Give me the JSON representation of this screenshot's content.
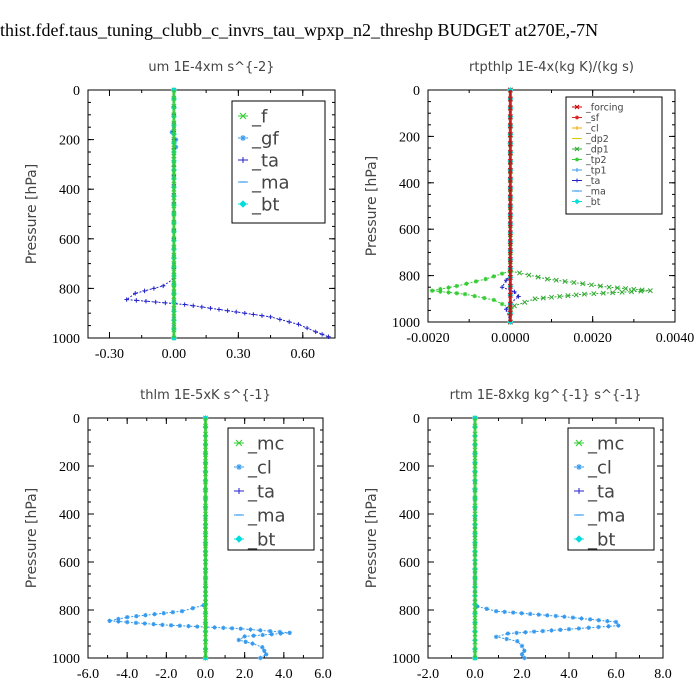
{
  "page": {
    "title": "thist.fdef.taus_tuning_clubb_c_invrs_tau_wpxp_n2_threshp  BUDGET at270E,-7N"
  },
  "chart_data": [
    {
      "type": "line",
      "title": "um   1E-4xm s^{-2}",
      "ylabel": "Pressure [hPa]",
      "xlim": [
        -0.4,
        0.75
      ],
      "ylim": [
        1000,
        0
      ],
      "xticks": [
        -0.3,
        0.0,
        0.3,
        0.6
      ],
      "xtick_labels": [
        "-0.30",
        "0.00",
        "0.30",
        "0.60"
      ],
      "yticks": [
        0,
        200,
        400,
        600,
        800,
        1000
      ],
      "ytick_labels": [
        "0",
        "200",
        "400",
        "600",
        "800",
        "1000"
      ],
      "legend": {
        "position": "top-right",
        "font": "large"
      },
      "series": [
        {
          "name": "_f",
          "color": "#33cc33",
          "marker": "x",
          "points": [
            [
              0,
              0
            ],
            [
              0,
              100
            ],
            [
              0,
              200
            ],
            [
              0,
              300
            ],
            [
              0,
              400
            ],
            [
              0,
              500
            ],
            [
              0,
              600
            ],
            [
              0,
              700
            ],
            [
              0,
              800
            ],
            [
              0,
              900
            ],
            [
              0,
              1000
            ]
          ]
        },
        {
          "name": "_gf",
          "color": "#3399ee",
          "marker": "*",
          "points": [
            [
              0,
              0
            ],
            [
              0,
              100
            ],
            [
              0,
              150
            ],
            [
              -0.01,
              170
            ],
            [
              0.01,
              200
            ],
            [
              0.01,
              230
            ],
            [
              0,
              260
            ],
            [
              0,
              350
            ],
            [
              0,
              500
            ],
            [
              0,
              700
            ],
            [
              0,
              780
            ],
            [
              0,
              850
            ],
            [
              0,
              950
            ],
            [
              0,
              1000
            ]
          ]
        },
        {
          "name": "_ta",
          "color": "#2222cc",
          "marker": "+",
          "points": [
            [
              0,
              0
            ],
            [
              0,
              200
            ],
            [
              0,
              600
            ],
            [
              0,
              760
            ],
            [
              -0.05,
              790
            ],
            [
              -0.18,
              820
            ],
            [
              -0.22,
              845
            ],
            [
              0.05,
              865
            ],
            [
              0.25,
              890
            ],
            [
              0.45,
              915
            ],
            [
              0.58,
              945
            ],
            [
              0.66,
              975
            ],
            [
              0.72,
              995
            ]
          ]
        },
        {
          "name": "_ma",
          "color": "#3399ee",
          "marker": "-",
          "points": [
            [
              0,
              0
            ],
            [
              0,
              500
            ],
            [
              0,
              1000
            ]
          ]
        },
        {
          "name": "_bt",
          "color": "#00dddd",
          "marker": "diamond",
          "points": [
            [
              0,
              0
            ],
            [
              0,
              1000
            ]
          ]
        }
      ]
    },
    {
      "type": "line",
      "title": "rtpthlp   1E-4x(kg K)/(kg s)",
      "ylabel": "Pressure [hPa]",
      "xlim": [
        -0.002,
        0.004
      ],
      "ylim": [
        1000,
        0
      ],
      "xticks": [
        -0.002,
        0.0,
        0.002,
        0.004
      ],
      "xtick_labels": [
        "-0.0020",
        "0.0000",
        "0.0020",
        "0.0040"
      ],
      "yticks": [
        0,
        200,
        400,
        600,
        800,
        1000
      ],
      "ytick_labels": [
        "0",
        "200",
        "400",
        "600",
        "800",
        "1000"
      ],
      "legend": {
        "position": "top-right",
        "font": "small"
      },
      "series": [
        {
          "name": "_forcing",
          "color": "#cc0000",
          "marker": "x",
          "points": [
            [
              0,
              0
            ],
            [
              0,
              1000
            ]
          ]
        },
        {
          "name": "_sf",
          "color": "#dd2222",
          "marker": "*",
          "points": [
            [
              0,
              0
            ],
            [
              0,
              500
            ],
            [
              0,
              1000
            ]
          ]
        },
        {
          "name": "_cl",
          "color": "#eeaa00",
          "marker": "+",
          "points": [
            [
              0,
              0
            ],
            [
              0,
              1000
            ]
          ]
        },
        {
          "name": "_dp2",
          "color": "#ddcc00",
          "marker": "-",
          "points": [
            [
              0,
              0
            ],
            [
              0,
              1000
            ]
          ]
        },
        {
          "name": "_dp1",
          "color": "#33aa33",
          "marker": "x",
          "points": [
            [
              0,
              0
            ],
            [
              0,
              780
            ],
            [
              0.0009,
              815
            ],
            [
              0.0024,
              850
            ],
            [
              0.0034,
              865
            ],
            [
              0.0018,
              880
            ],
            [
              0.0006,
              900
            ],
            [
              0.0001,
              930
            ],
            [
              0,
              960
            ],
            [
              0,
              1000
            ]
          ]
        },
        {
          "name": "_tp2",
          "color": "#33cc33",
          "marker": "*",
          "points": [
            [
              0,
              0
            ],
            [
              0,
              780
            ],
            [
              -0.0006,
              815
            ],
            [
              -0.0013,
              845
            ],
            [
              -0.0019,
              865
            ],
            [
              -0.0011,
              880
            ],
            [
              -0.0004,
              905
            ],
            [
              0,
              940
            ],
            [
              0,
              1000
            ]
          ]
        },
        {
          "name": "_tp1",
          "color": "#3399ee",
          "marker": "+",
          "points": [
            [
              0,
              0
            ],
            [
              0,
              1000
            ]
          ]
        },
        {
          "name": "_ta",
          "color": "#2222cc",
          "marker": "+",
          "points": [
            [
              0,
              0
            ],
            [
              0,
              800
            ],
            [
              -0.0001,
              820
            ],
            [
              -0.0002,
              850
            ],
            [
              0.0001,
              870
            ],
            [
              0.0002,
              890
            ],
            [
              0,
              920
            ],
            [
              -0.0001,
              945
            ],
            [
              0,
              1000
            ]
          ]
        },
        {
          "name": "_ma",
          "color": "#3399ee",
          "marker": "-",
          "points": [
            [
              0,
              0
            ],
            [
              0,
              1000
            ]
          ]
        },
        {
          "name": "_bt",
          "color": "#00dddd",
          "marker": "diamond",
          "points": [
            [
              0,
              0
            ],
            [
              0,
              1000
            ]
          ]
        }
      ]
    },
    {
      "type": "line",
      "title": "thlm   1E-5xK s^{-1}",
      "ylabel": "Pressure [hPa]",
      "xlim": [
        -6.0,
        6.0
      ],
      "ylim": [
        1000,
        0
      ],
      "xticks": [
        -6,
        -4,
        -2,
        0,
        2,
        4,
        6
      ],
      "xtick_labels": [
        "-6.0",
        "-4.0",
        "-2.0",
        "0.0",
        "2.0",
        "4.0",
        "6.0"
      ],
      "yticks": [
        0,
        200,
        400,
        600,
        800,
        1000
      ],
      "ytick_labels": [
        "0",
        "200",
        "400",
        "600",
        "800",
        "1000"
      ],
      "legend": {
        "position": "top-right",
        "font": "large"
      },
      "series": [
        {
          "name": "_mc",
          "color": "#33cc33",
          "marker": "x",
          "points": [
            [
              0,
              0
            ],
            [
              0,
              100
            ],
            [
              0,
              200
            ],
            [
              0,
              300
            ],
            [
              0,
              400
            ],
            [
              0,
              500
            ],
            [
              0,
              600
            ],
            [
              0,
              700
            ],
            [
              0,
              800
            ],
            [
              0,
              900
            ],
            [
              0,
              1000
            ]
          ]
        },
        {
          "name": "_cl",
          "color": "#3399ee",
          "marker": "*",
          "points": [
            [
              0,
              0
            ],
            [
              0,
              760
            ],
            [
              -0.1,
              780
            ],
            [
              -1.2,
              805
            ],
            [
              -4.0,
              830
            ],
            [
              -4.9,
              845
            ],
            [
              -2.2,
              862
            ],
            [
              1.8,
              878
            ],
            [
              4.3,
              895
            ],
            [
              2.0,
              910
            ],
            [
              1.7,
              925
            ],
            [
              2.4,
              940
            ],
            [
              2.9,
              955
            ],
            [
              3.0,
              970
            ],
            [
              3.1,
              985
            ],
            [
              2.8,
              1000
            ]
          ]
        },
        {
          "name": "_ta",
          "color": "#2222cc",
          "marker": "+",
          "points": [
            [
              0,
              0
            ],
            [
              0,
              1000
            ]
          ]
        },
        {
          "name": "_ma",
          "color": "#3399ee",
          "marker": "-",
          "points": [
            [
              0,
              0
            ],
            [
              0,
              1000
            ]
          ]
        },
        {
          "name": "_bt",
          "color": "#00dddd",
          "marker": "diamond",
          "points": [
            [
              0,
              0
            ],
            [
              0,
              1000
            ]
          ]
        }
      ]
    },
    {
      "type": "line",
      "title": "rtm   1E-8xkg kg^{-1} s^{-1}",
      "ylabel": "Pressure [hPa]",
      "xlim": [
        -2.0,
        8.0
      ],
      "ylim": [
        1000,
        0
      ],
      "xticks": [
        -2,
        0,
        2,
        4,
        6,
        8
      ],
      "xtick_labels": [
        "-2.0",
        "0.0",
        "2.0",
        "4.0",
        "6.0",
        "8.0"
      ],
      "yticks": [
        0,
        200,
        400,
        600,
        800,
        1000
      ],
      "ytick_labels": [
        "0",
        "200",
        "400",
        "600",
        "800",
        "1000"
      ],
      "legend": {
        "position": "top-right",
        "font": "large"
      },
      "series": [
        {
          "name": "_mc",
          "color": "#33cc33",
          "marker": "x",
          "points": [
            [
              0,
              0
            ],
            [
              0,
              100
            ],
            [
              0,
              200
            ],
            [
              0,
              300
            ],
            [
              0,
              400
            ],
            [
              0,
              500
            ],
            [
              0,
              600
            ],
            [
              0,
              700
            ],
            [
              0,
              800
            ],
            [
              0,
              900
            ],
            [
              0,
              1000
            ]
          ]
        },
        {
          "name": "_cl",
          "color": "#3399ee",
          "marker": "*",
          "points": [
            [
              0,
              0
            ],
            [
              0,
              760
            ],
            [
              0.1,
              785
            ],
            [
              0.9,
              805
            ],
            [
              3.8,
              828
            ],
            [
              6.0,
              850
            ],
            [
              6.1,
              865
            ],
            [
              4.0,
              880
            ],
            [
              1.4,
              898
            ],
            [
              0.9,
              912
            ],
            [
              1.8,
              930
            ],
            [
              2.0,
              950
            ],
            [
              2.1,
              970
            ],
            [
              2.0,
              985
            ],
            [
              2.1,
              1000
            ]
          ]
        },
        {
          "name": "_ta",
          "color": "#2222cc",
          "marker": "+",
          "points": [
            [
              0,
              0
            ],
            [
              0,
              1000
            ]
          ]
        },
        {
          "name": "_ma",
          "color": "#3399ee",
          "marker": "-",
          "points": [
            [
              0,
              0
            ],
            [
              0,
              1000
            ]
          ]
        },
        {
          "name": "_bt",
          "color": "#00dddd",
          "marker": "diamond",
          "points": [
            [
              0,
              0
            ],
            [
              0,
              1000
            ]
          ]
        }
      ]
    }
  ]
}
